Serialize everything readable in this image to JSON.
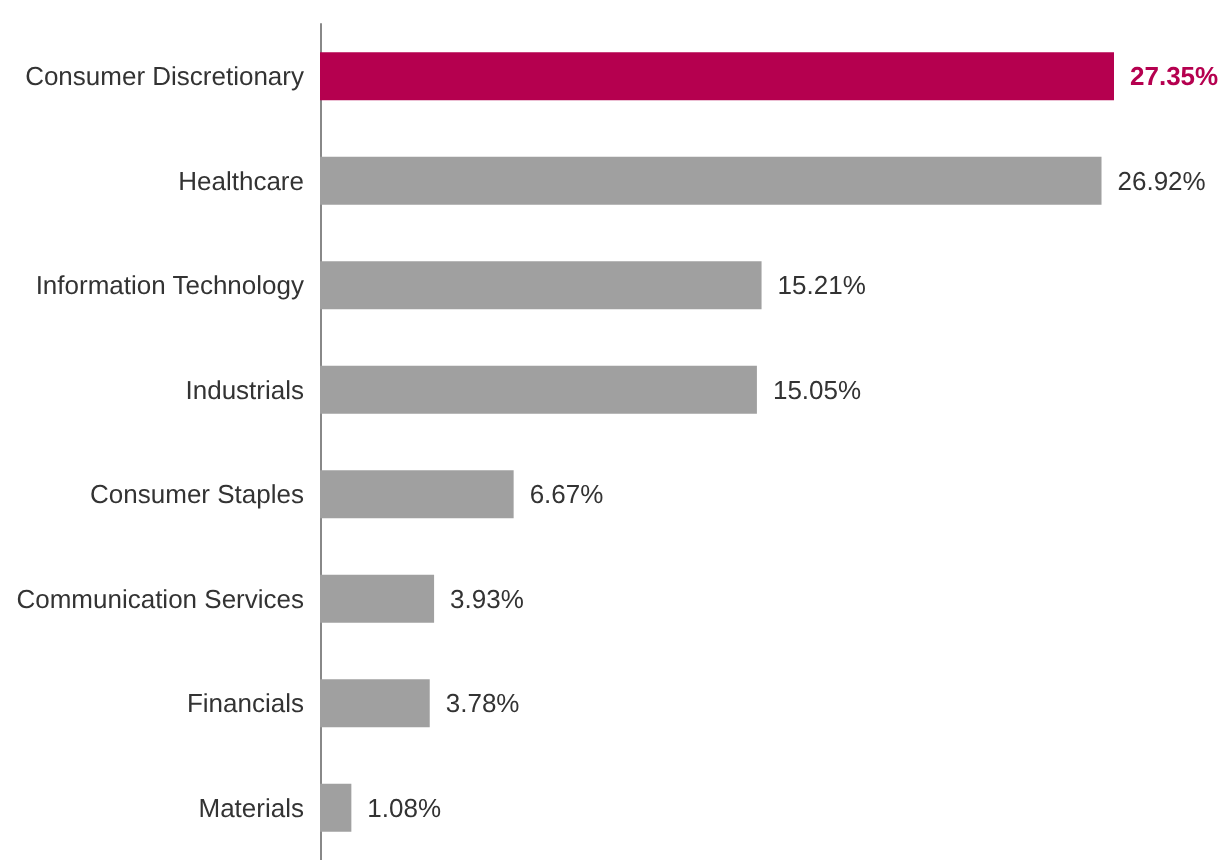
{
  "chart_data": {
    "type": "bar",
    "orientation": "horizontal",
    "categories": [
      "Consumer Discretionary",
      "Healthcare",
      "Information Technology",
      "Industrials",
      "Consumer Staples",
      "Communication Services",
      "Financials",
      "Materials"
    ],
    "values": [
      27.35,
      26.92,
      15.21,
      15.05,
      6.67,
      3.93,
      3.78,
      1.08
    ],
    "colors": [
      "#b5004f",
      "#a0a0a0",
      "#a0a0a0",
      "#a0a0a0",
      "#a0a0a0",
      "#a0a0a0",
      "#a0a0a0",
      "#a0a0a0"
    ],
    "value_labels": [
      "27.35%",
      "26.92%",
      "15.21%",
      "15.05%",
      "6.67%",
      "3.93%",
      "3.78%",
      "1.08%"
    ]
  }
}
